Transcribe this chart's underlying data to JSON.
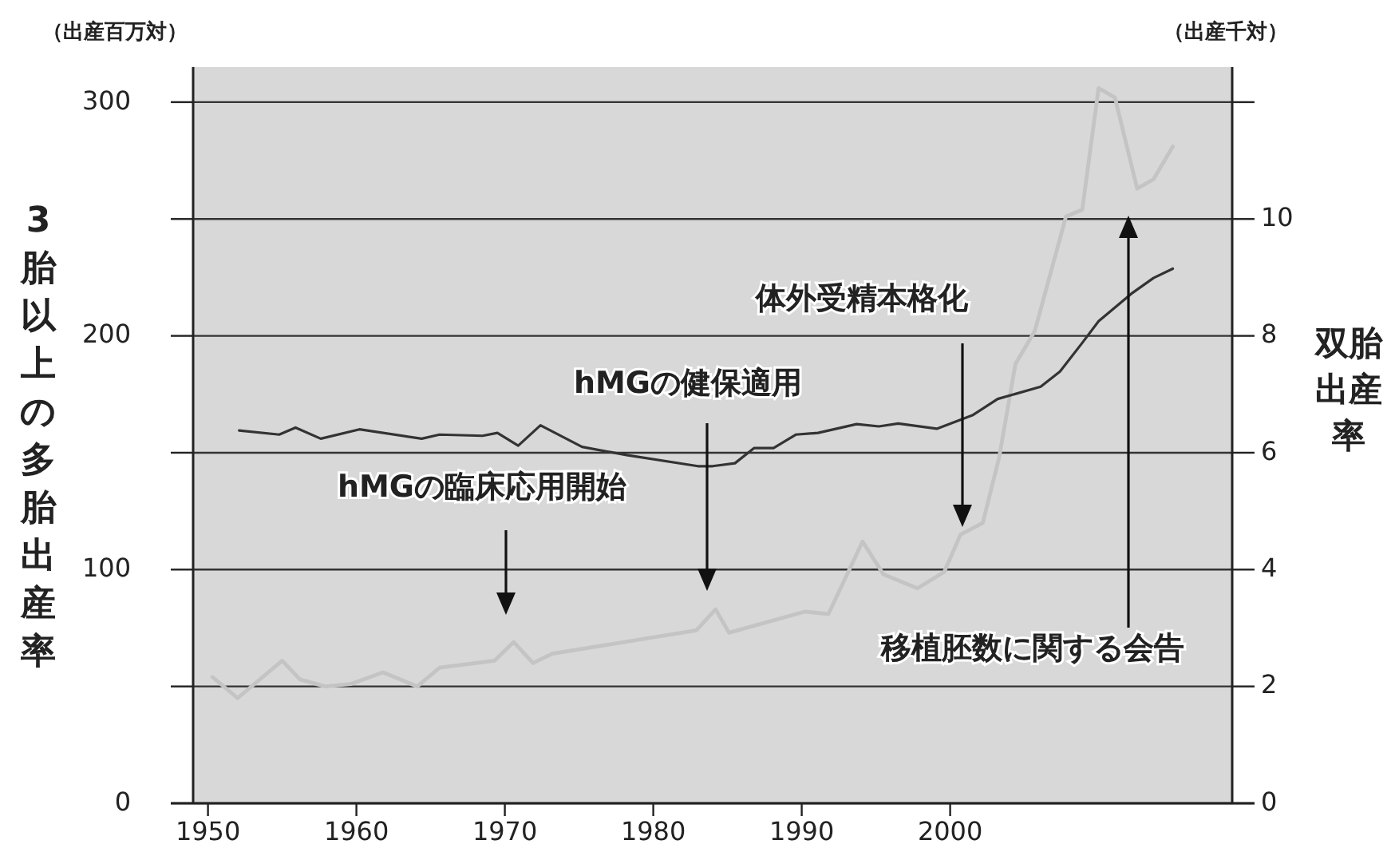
{
  "chart_data": {
    "type": "line",
    "ylabel": "3胎以上の多胎出産率",
    "y2label": "双胎出産率",
    "xlim": [
      1949,
      2019
    ],
    "xticks": [
      1950,
      1960,
      1970,
      1980,
      1990,
      2000
    ],
    "ylim": [
      0,
      315
    ],
    "yticks": [
      0,
      {
        "value": 50,
        "label": null
      },
      100,
      {
        "value": 150,
        "label": null
      },
      200,
      {
        "value": 250,
        "label": null
      },
      300
    ],
    "y2lim": [
      0,
      12.6
    ],
    "y2ticks": [
      0,
      2,
      4,
      6,
      8,
      10,
      {
        "value": 12,
        "label": null
      }
    ],
    "grid": "y",
    "line_style": "solid",
    "marker": "none",
    "series": [
      {
        "color": "#c4c4c4",
        "x": [
          1950.3,
          1952.0,
          1955.0,
          1956.2,
          1957.9,
          1959.6,
          1961.8,
          1964.1,
          1965.6,
          1969.3,
          1970.6,
          1971.9,
          1973.2,
          1982.9,
          1984.2,
          1985.1,
          1990.2,
          1991.8,
          1994.1,
          1995.5,
          1997.8,
          1999.6,
          2000.7,
          2002.2,
          2003.3,
          2004.4,
          2005.7,
          2007.8,
          2008.9,
          2010.0,
          2011.1,
          2012.6,
          2013.7,
          2015.0
        ],
        "values": [
          54,
          45,
          61,
          53,
          50,
          51,
          56,
          50,
          58,
          61,
          69,
          60,
          64,
          74,
          83,
          73,
          82,
          81,
          112,
          98,
          92,
          99,
          115,
          120,
          148,
          188,
          202,
          251,
          254,
          306,
          302,
          263,
          267,
          281
        ]
      },
      {
        "color": "#333333",
        "axis": "y2",
        "x": [
          1952.1,
          1954.8,
          1955.9,
          1957.6,
          1960.2,
          1964.4,
          1965.6,
          1968.5,
          1969.5,
          1970.9,
          1972.4,
          1975.2,
          1978.2,
          1983.0,
          1984.0,
          1985.5,
          1986.8,
          1988.1,
          1989.6,
          1991.1,
          1993.7,
          1995.2,
          1996.5,
          1999.1,
          2001.5,
          2003.2,
          2006.1,
          2007.4,
          2008.9,
          2010.0,
          2012.2,
          2013.7,
          2015.0
        ],
        "values": [
          6.38,
          6.31,
          6.43,
          6.24,
          6.4,
          6.24,
          6.31,
          6.29,
          6.34,
          6.12,
          6.47,
          6.1,
          5.96,
          5.77,
          5.77,
          5.82,
          6.08,
          6.08,
          6.31,
          6.34,
          6.49,
          6.45,
          6.5,
          6.41,
          6.64,
          6.92,
          7.13,
          7.39,
          7.88,
          8.25,
          8.72,
          8.99,
          9.15
        ]
      }
    ],
    "annotations": [
      "（出産百万対）",
      "（出産千対）",
      "hMGの臨床応用開始",
      "hMGの健保適用",
      "体外受精本格化",
      "移植胚数に関する会告"
    ]
  }
}
